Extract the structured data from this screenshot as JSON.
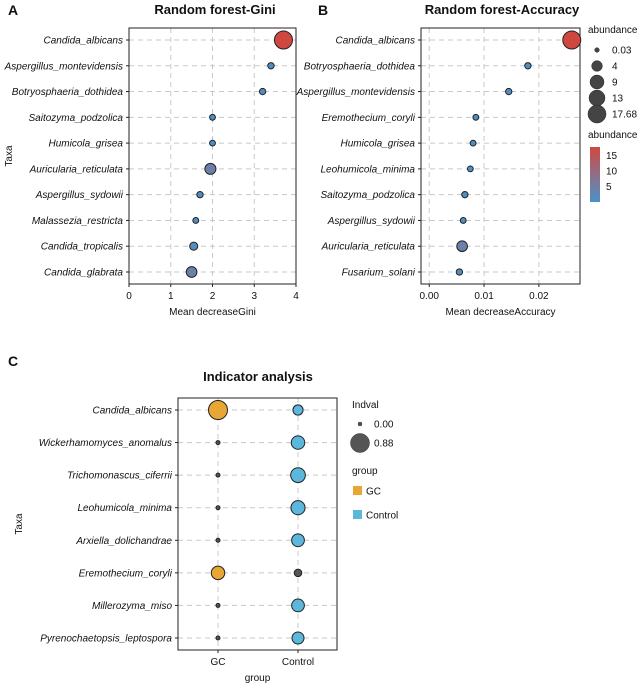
{
  "chart_data": [
    {
      "panel": "A",
      "type": "scatter",
      "title": "Random forest-Gini",
      "xlabel": "Mean decreaseGini",
      "ylabel": "Taxa",
      "xlim": [
        0,
        4
      ],
      "xticks": [
        0,
        1,
        2,
        3,
        4
      ],
      "categories": [
        "Candida_albicans",
        "Aspergillus_montevidensis",
        "Botryosphaeria_dothidea",
        "Saitozyma_podzolica",
        "Humicola_grisea",
        "Auricularia_reticulata",
        "Aspergillus_sydowii",
        "Malassezia_restricta",
        "Candida_tropicalis",
        "Candida_glabrata"
      ],
      "values": [
        3.7,
        3.4,
        3.2,
        2.0,
        2.0,
        1.95,
        1.7,
        1.6,
        1.55,
        1.5
      ],
      "abundance": [
        17.68,
        0.5,
        0.5,
        0.3,
        0.3,
        4.5,
        0.5,
        0.3,
        1.5,
        4.0
      ]
    },
    {
      "panel": "B",
      "type": "scatter",
      "title": "Random forest-Accuracy",
      "xlabel": "Mean decreaseAccuracy",
      "ylabel": "",
      "xlim": [
        -0.0015,
        0.0275
      ],
      "xticks": [
        0,
        0.01,
        0.02
      ],
      "xtick_labels": [
        "0.00",
        "0.01",
        "0.02"
      ],
      "categories": [
        "Candida_albicans",
        "Botryosphaeria_dothidea",
        "Aspergillus_montevidensis",
        "Eremothecium_coryli",
        "Humicola_grisea",
        "Leohumicola_minima",
        "Saitozyma_podzolica",
        "Aspergillus_sydowii",
        "Auricularia_reticulata",
        "Fusarium_solani"
      ],
      "values": [
        0.026,
        0.018,
        0.0145,
        0.0085,
        0.008,
        0.0075,
        0.0065,
        0.0062,
        0.006,
        0.0055
      ],
      "abundance": [
        17.68,
        0.5,
        0.5,
        0.3,
        0.3,
        0.3,
        0.5,
        0.3,
        4.0,
        0.5
      ],
      "legend": {
        "size_title": "abundance",
        "size_labels": [
          "0.03",
          "4",
          "9",
          "13",
          "17.68"
        ],
        "size_values": [
          0.03,
          4,
          9,
          13,
          17.68
        ],
        "color_title": "abundance",
        "color_ticks": [
          "15",
          "10",
          "5"
        ],
        "color_tick_values": [
          15,
          10,
          5
        ],
        "color_range": [
          0.03,
          17.68
        ],
        "color_low": "#4a90c8",
        "color_high": "#d0473f"
      }
    },
    {
      "panel": "C",
      "type": "scatter",
      "title": "Indicator analysis",
      "xlabel": "group",
      "ylabel": "Taxa",
      "categories": [
        "Candida_albicans",
        "Wickerhamomyces_anomalus",
        "Trichomonascus_ciferrii",
        "Leohumicola_minima",
        "Arxiella_dolichandrae",
        "Eremothecium_coryli",
        "Millerozyma_miso",
        "Pyrenochaetopsis_leptospora"
      ],
      "groups": [
        "GC",
        "Control"
      ],
      "indval_GC": [
        0.88,
        0.0,
        0.0,
        0.0,
        0.0,
        0.35,
        0.0,
        0.0
      ],
      "indval_Control": [
        0.15,
        0.35,
        0.45,
        0.4,
        0.3,
        0.05,
        0.3,
        0.25
      ],
      "legend": {
        "size_title": "Indval",
        "size_labels": [
          "0.00",
          "0.88"
        ],
        "size_values": [
          0.0,
          0.88
        ],
        "group_title": "group",
        "group_labels": [
          "GC",
          "Control"
        ],
        "group_colors": [
          "#e8a735",
          "#5bb8dc"
        ]
      }
    }
  ]
}
